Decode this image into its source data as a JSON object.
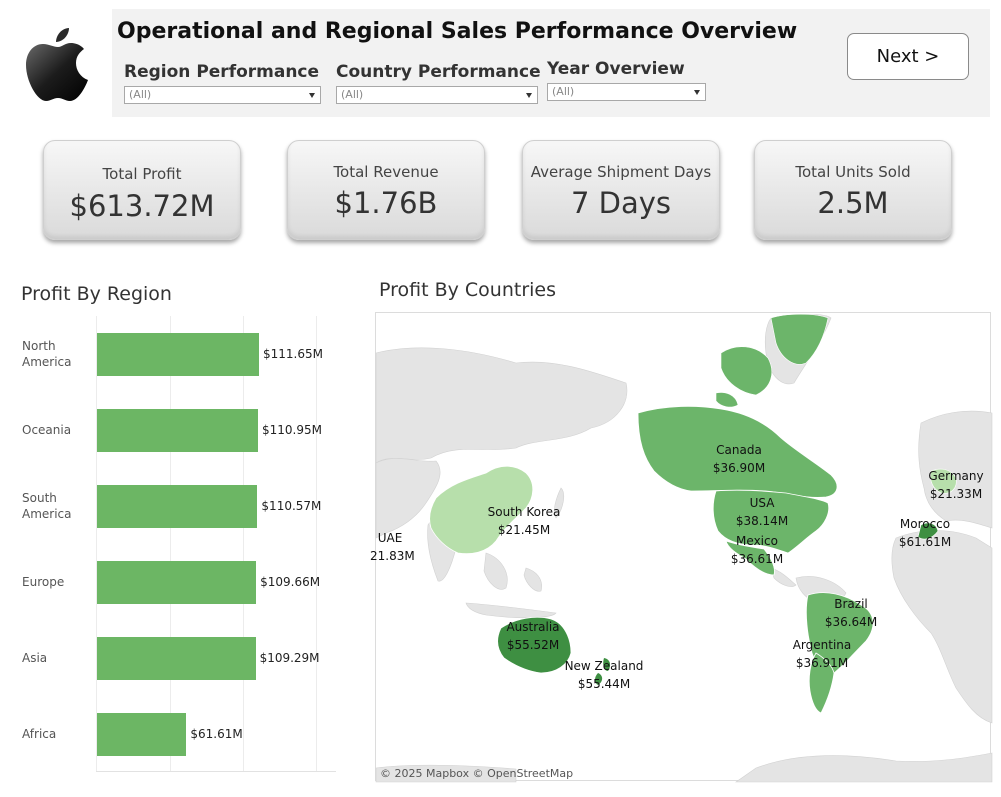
{
  "header": {
    "title": "Operational and Regional Sales Performance Overview",
    "next_label": "Next >"
  },
  "filters": [
    {
      "label": "Region Performance",
      "value": "(All)"
    },
    {
      "label": "Country Performance",
      "value": "(All)"
    },
    {
      "label": "Year Overview",
      "value": "(All)"
    }
  ],
  "kpis": [
    {
      "label": "Total Profit",
      "value": "$613.72M"
    },
    {
      "label": "Total Revenue",
      "value": "$1.76B"
    },
    {
      "label": "Average Shipment Days",
      "value": "7 Days"
    },
    {
      "label": "Total Units Sold",
      "value": "2.5M"
    }
  ],
  "profit_by_region": {
    "title": "Profit By Region",
    "rows": [
      {
        "label": "North\nAmerica",
        "value": "$111.65M"
      },
      {
        "label": "Oceania",
        "value": "$110.95M"
      },
      {
        "label": "South\nAmerica",
        "value": "$110.57M"
      },
      {
        "label": "Europe",
        "value": "$109.66M"
      },
      {
        "label": "Asia",
        "value": "$109.29M"
      },
      {
        "label": "Africa",
        "value": "$61.61M"
      }
    ]
  },
  "chart_data": {
    "type": "bar",
    "categories": [
      "North America",
      "Oceania",
      "South America",
      "Europe",
      "Asia",
      "Africa"
    ],
    "values": [
      111.65,
      110.95,
      110.57,
      109.66,
      109.29,
      61.61
    ],
    "title": "Profit By Region",
    "xlim": [
      0,
      160
    ],
    "bar_color": "#6cb664"
  },
  "profit_by_countries": {
    "title": "Profit By Countries",
    "attribution": "© 2025 Mapbox  © OpenStreetMap",
    "labels": [
      {
        "name": "Canada",
        "value": "$36.90M"
      },
      {
        "name": "USA",
        "value": "$38.14M"
      },
      {
        "name": "Mexico",
        "value": "$36.61M"
      },
      {
        "name": "Germany",
        "value": "$21.33M"
      },
      {
        "name": "Morocco",
        "value": "$61.61M"
      },
      {
        "name": "South Korea",
        "value": "$21.45M"
      },
      {
        "name": "UAE",
        "value": "21.83M"
      },
      {
        "name": "Brazil",
        "value": "$36.64M"
      },
      {
        "name": "Argentina",
        "value": "$36.91M"
      },
      {
        "name": "Australia",
        "value": "$55.52M"
      },
      {
        "name": "New Zealand",
        "value": "$55.44M"
      }
    ]
  },
  "colors": {
    "bar": "#6cb664",
    "map_dark": "#3e8f42",
    "map_mid": "#6cb56a",
    "map_light": "#a9d69c",
    "map_land_gray": "#e3e3e3"
  }
}
